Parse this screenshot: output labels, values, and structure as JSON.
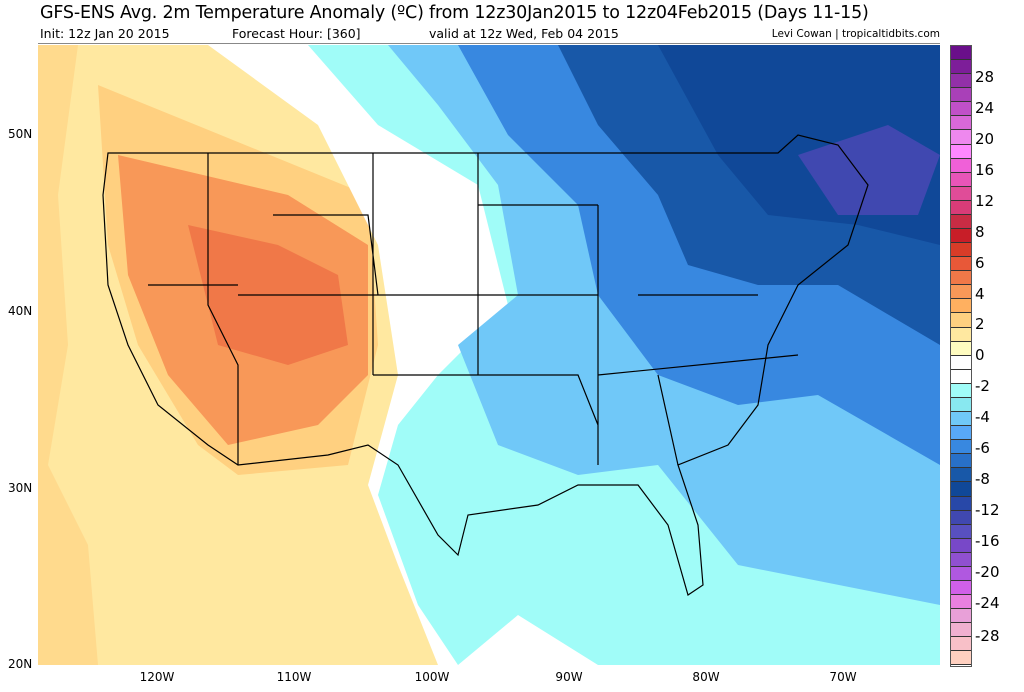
{
  "header": {
    "title": "GFS-ENS Avg. 2m Temperature Anomaly (ºC) from 12z30Jan2015 to 12z04Feb2015 (Days 11-15)",
    "init": "Init: 12z Jan 20 2015",
    "forecast_hour": "Forecast Hour: [360]",
    "valid": "valid at 12z Wed, Feb 04 2015",
    "credit": "Levi Cowan | tropicaltidbits.com"
  },
  "map": {
    "lat_labels": [
      "50N",
      "40N",
      "30N",
      "20N"
    ],
    "lon_labels": [
      "120W",
      "110W",
      "100W",
      "90W",
      "80W",
      "70W"
    ],
    "region": "Continental United States",
    "pattern": "warm anomalies west, cold anomalies east/northeast"
  },
  "colorbar": {
    "labels": [
      "28",
      "24",
      "20",
      "16",
      "12",
      "8",
      "6",
      "4",
      "2",
      "0",
      "-2",
      "-4",
      "-6",
      "-8",
      "-12",
      "-16",
      "-20",
      "-24",
      "-28"
    ],
    "colors": [
      "#6a0f8a",
      "#7d1e99",
      "#9230a8",
      "#a940b8",
      "#c050c8",
      "#d868d8",
      "#ee88ee",
      "#ff88ff",
      "#f060d8",
      "#e855b8",
      "#e04c98",
      "#d83c78",
      "#c82c44",
      "#c81e28",
      "#d83c28",
      "#e85838",
      "#f07848",
      "#f89858",
      "#ffb060",
      "#ffd080",
      "#ffe8a0",
      "#fffcc0",
      "#ffffff",
      "#ffffff",
      "#a0fcf8",
      "#88e8f0",
      "#70c8f8",
      "#58a8f8",
      "#3888e0",
      "#2870c8",
      "#1858a8",
      "#104898",
      "#2848a8",
      "#4048b0",
      "#5850c0",
      "#7848c8",
      "#9050d0",
      "#b058e0",
      "#d060e8",
      "#e880e0",
      "#e8a0d8",
      "#f0b0d0",
      "#f8c0c8",
      "#ffd0c0"
    ]
  }
}
